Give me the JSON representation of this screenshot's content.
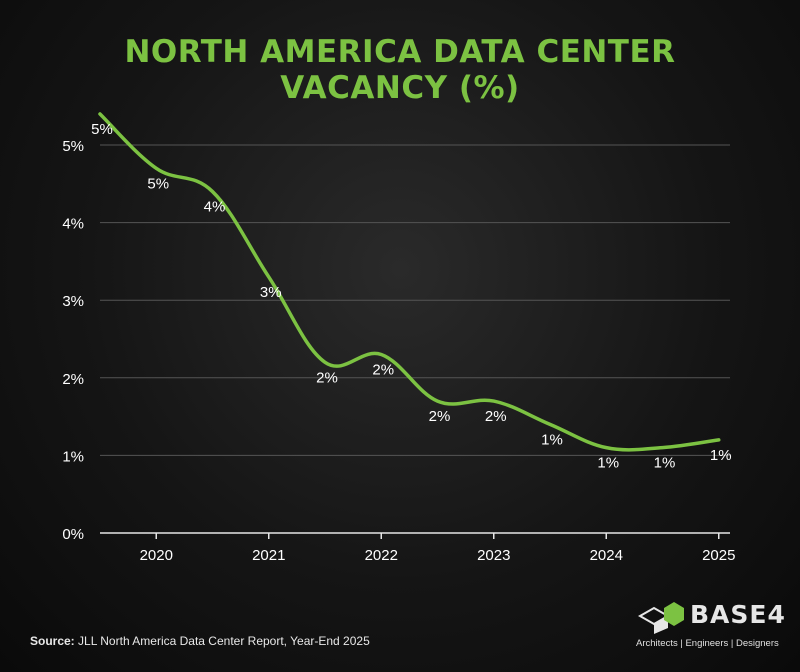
{
  "title_lines": [
    "NORTH AMERICA DATA CENTER",
    "VACANCY (%)"
  ],
  "source": {
    "label": "Source:",
    "text": "JLL North America Data Center Report, Year-End 2025"
  },
  "brand": {
    "name": "BASE4",
    "tagline": "Architects | Engineers | Designers"
  },
  "colors": {
    "accent": "#7cc242",
    "background": "#151515",
    "text": "#ffffff",
    "grid": "#555555"
  },
  "chart_data": {
    "type": "line",
    "title": "NORTH AMERICA DATA CENTER VACANCY (%)",
    "xlabel": "",
    "ylabel": "",
    "x": [
      2019.5,
      2020.0,
      2020.5,
      2021.0,
      2021.5,
      2022.0,
      2022.5,
      2023.0,
      2023.5,
      2024.0,
      2024.5,
      2025.0
    ],
    "values": [
      5.4,
      4.7,
      4.4,
      3.3,
      2.2,
      2.3,
      1.7,
      1.7,
      1.4,
      1.1,
      1.1,
      1.2
    ],
    "point_labels": [
      "5%",
      "5%",
      "4%",
      "3%",
      "2%",
      "2%",
      "2%",
      "2%",
      "1%",
      "1%",
      "1%",
      "1%"
    ],
    "x_ticks": [
      2020,
      2021,
      2022,
      2023,
      2024,
      2025
    ],
    "x_tick_labels": [
      "2020",
      "2021",
      "2022",
      "2023",
      "2024",
      "2025"
    ],
    "y_ticks": [
      0,
      1,
      2,
      3,
      4,
      5
    ],
    "y_tick_labels": [
      "0%",
      "1%",
      "2%",
      "3%",
      "4%",
      "5%"
    ],
    "xlim": [
      2019.5,
      2025.1
    ],
    "ylim": [
      0,
      5.5
    ],
    "grid": true,
    "legend": "none",
    "line_color": "#7cc242"
  }
}
